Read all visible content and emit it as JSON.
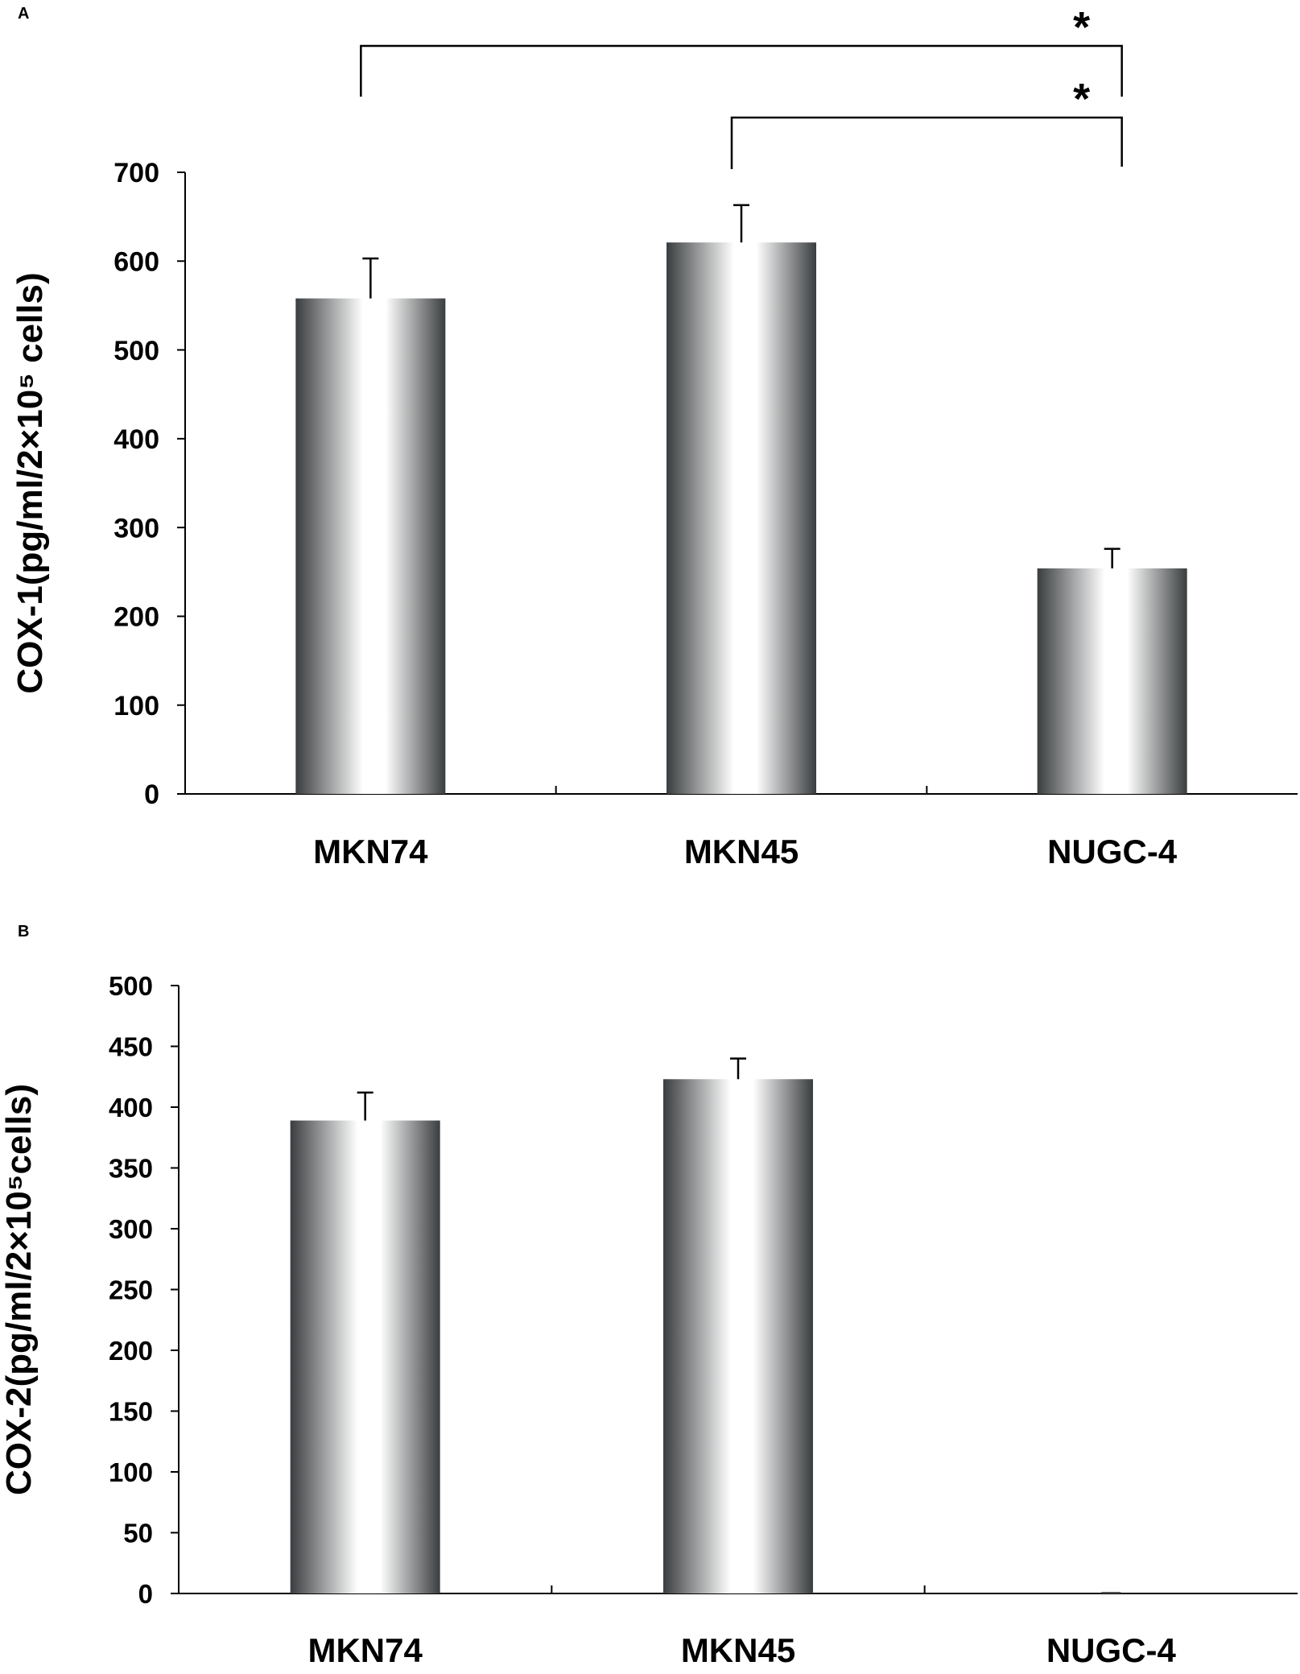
{
  "chart_data": [
    {
      "panel": "A",
      "type": "bar",
      "categories": [
        "MKN74",
        "MKN45",
        "NUGC-4"
      ],
      "values": [
        558,
        621,
        254
      ],
      "errors": [
        45,
        42,
        22
      ],
      "ylabel": "COX-1(pg/ml/2×10⁵ cells)",
      "ylim": [
        0,
        700
      ],
      "yticks": [
        0,
        100,
        200,
        300,
        400,
        500,
        600,
        700
      ],
      "grid": false,
      "legend": "none",
      "significance": [
        {
          "from": 0,
          "to": 2,
          "label": "*"
        },
        {
          "from": 1,
          "to": 2,
          "label": "*"
        }
      ]
    },
    {
      "panel": "B",
      "type": "bar",
      "categories": [
        "MKN74",
        "MKN45",
        "NUGC-4"
      ],
      "values": [
        389,
        423,
        0
      ],
      "errors": [
        23,
        17,
        0
      ],
      "ylabel": "COX-2(pg/ml/2×10⁵cells)",
      "ylim": [
        0,
        500
      ],
      "yticks": [
        0,
        50,
        100,
        150,
        200,
        250,
        300,
        350,
        400,
        450,
        500
      ],
      "grid": false,
      "legend": "none",
      "significance": []
    }
  ],
  "colors": {
    "bar_edge": "#3a3d3f",
    "bar_center": "#ffffff",
    "axis": "#000000"
  }
}
